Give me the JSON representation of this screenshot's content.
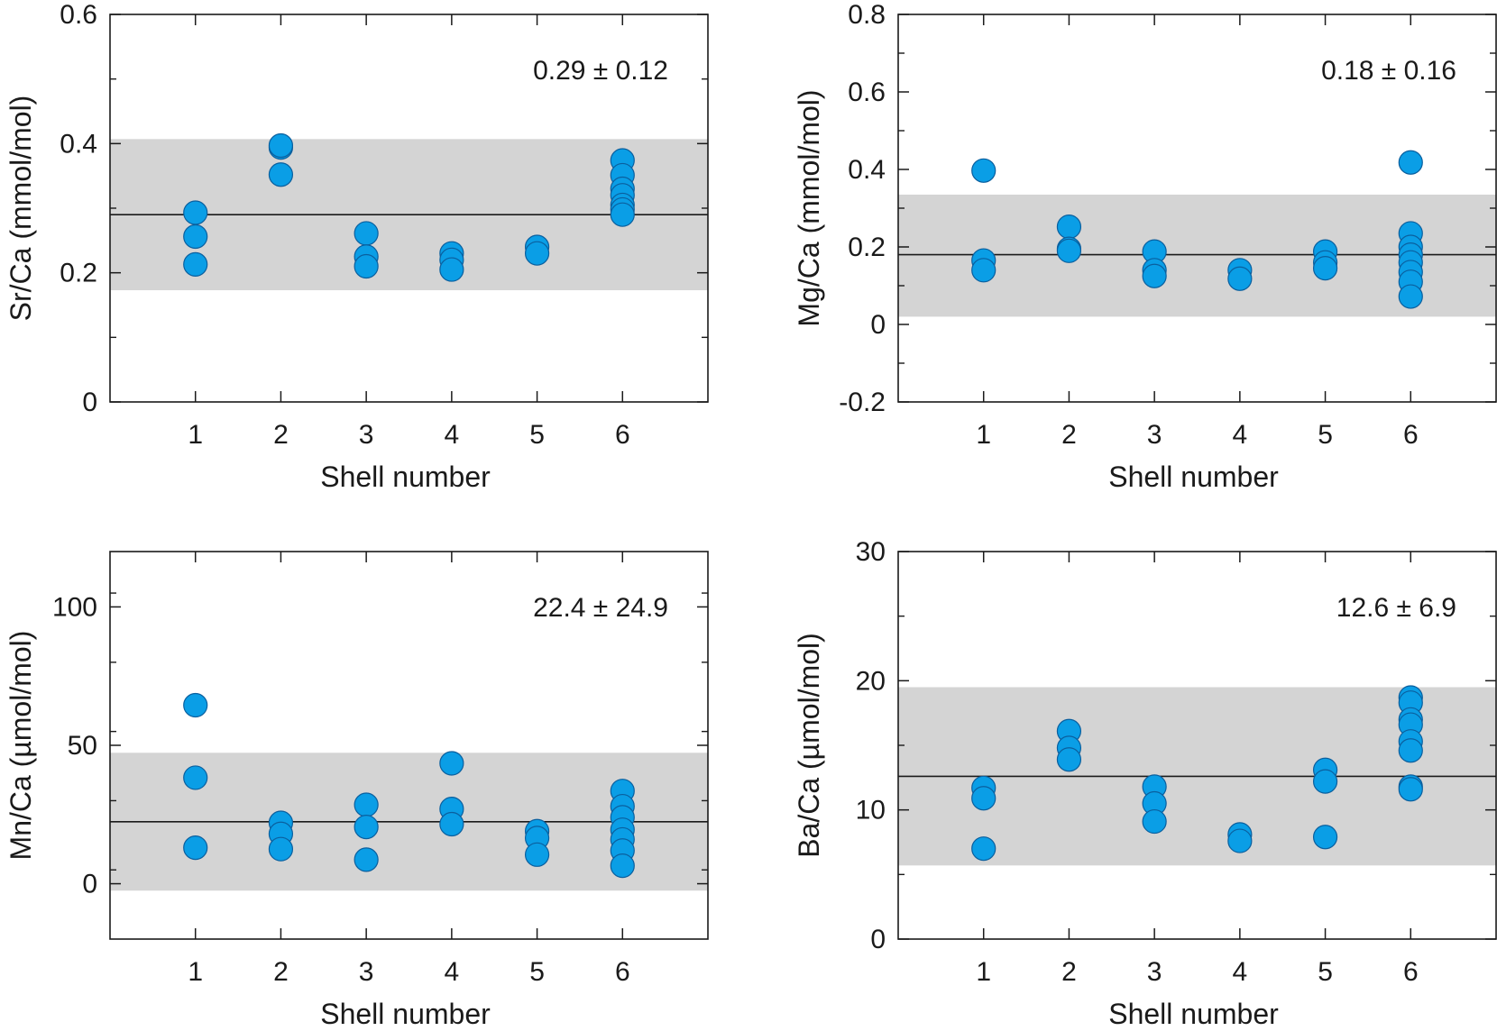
{
  "chart_data": [
    {
      "type": "scatter",
      "xlabel": "Shell number",
      "ylabel": "Sr/Ca (mmol/mol)",
      "xlim": [
        0,
        7
      ],
      "ylim": [
        0,
        0.6
      ],
      "x_ticks": [
        1,
        2,
        3,
        4,
        5,
        6
      ],
      "y_ticks": [
        0,
        0.2,
        0.4,
        0.6
      ],
      "y_tick_labels": [
        "0",
        "0.2",
        "0.4",
        "0.6"
      ],
      "annotation": "0.29 ± 0.12",
      "mean": 0.29,
      "band": [
        0.173,
        0.407
      ],
      "points": [
        [
          1,
          0.293
        ],
        [
          1,
          0.256
        ],
        [
          1,
          0.213
        ],
        [
          2,
          0.394
        ],
        [
          2,
          0.397
        ],
        [
          2,
          0.352
        ],
        [
          3,
          0.261
        ],
        [
          3,
          0.225
        ],
        [
          3,
          0.21
        ],
        [
          4,
          0.23
        ],
        [
          4,
          0.22
        ],
        [
          4,
          0.205
        ],
        [
          5,
          0.24
        ],
        [
          5,
          0.23
        ],
        [
          6,
          0.374
        ],
        [
          6,
          0.351
        ],
        [
          6,
          0.33
        ],
        [
          6,
          0.32
        ],
        [
          6,
          0.305
        ],
        [
          6,
          0.298
        ],
        [
          6,
          0.29
        ]
      ]
    },
    {
      "type": "scatter",
      "xlabel": "Shell number",
      "ylabel": "Mg/Ca (mmol/mol)",
      "xlim": [
        0,
        7
      ],
      "ylim": [
        -0.2,
        0.8
      ],
      "x_ticks": [
        1,
        2,
        3,
        4,
        5,
        6
      ],
      "y_ticks": [
        -0.2,
        0,
        0.2,
        0.4,
        0.6,
        0.8
      ],
      "y_tick_labels": [
        "-0.2",
        "0",
        "0.2",
        "0.4",
        "0.6",
        "0.8"
      ],
      "annotation": "0.18 ± 0.16",
      "mean": 0.18,
      "band": [
        0.02,
        0.335
      ],
      "points": [
        [
          1,
          0.397
        ],
        [
          1,
          0.165
        ],
        [
          1,
          0.14
        ],
        [
          2,
          0.252
        ],
        [
          2,
          0.195
        ],
        [
          2,
          0.19
        ],
        [
          3,
          0.188
        ],
        [
          3,
          0.14
        ],
        [
          3,
          0.125
        ],
        [
          4,
          0.14
        ],
        [
          4,
          0.118
        ],
        [
          5,
          0.188
        ],
        [
          5,
          0.16
        ],
        [
          5,
          0.145
        ],
        [
          6,
          0.418
        ],
        [
          6,
          0.235
        ],
        [
          6,
          0.2
        ],
        [
          6,
          0.18
        ],
        [
          6,
          0.16
        ],
        [
          6,
          0.135
        ],
        [
          6,
          0.11
        ],
        [
          6,
          0.072
        ]
      ]
    },
    {
      "type": "scatter",
      "xlabel": "Shell number",
      "ylabel": "Mn/Ca (µmol/mol)",
      "xlim": [
        0,
        7
      ],
      "ylim": [
        -20,
        120
      ],
      "x_ticks": [
        1,
        2,
        3,
        4,
        5,
        6
      ],
      "y_ticks": [
        0,
        50,
        100
      ],
      "y_tick_labels": [
        "0",
        "50",
        "100"
      ],
      "annotation": "22.4 ± 24.9",
      "mean": 22.4,
      "band": [
        -2.5,
        47.3
      ],
      "points": [
        [
          1,
          64.5
        ],
        [
          1,
          38.3
        ],
        [
          1,
          13
        ],
        [
          2,
          22
        ],
        [
          2,
          18
        ],
        [
          2,
          12.5
        ],
        [
          3,
          28.5
        ],
        [
          3,
          20.5
        ],
        [
          3,
          8.7
        ],
        [
          4,
          43.5
        ],
        [
          4,
          27
        ],
        [
          4,
          21.5
        ],
        [
          5,
          19
        ],
        [
          5,
          16.5
        ],
        [
          5,
          10.5
        ],
        [
          6,
          33.5
        ],
        [
          6,
          28
        ],
        [
          6,
          24
        ],
        [
          6,
          19.5
        ],
        [
          6,
          16
        ],
        [
          6,
          12
        ],
        [
          6,
          6.5
        ]
      ]
    },
    {
      "type": "scatter",
      "xlabel": "Shell number",
      "ylabel": "Ba/Ca (µmol/mol)",
      "xlim": [
        0,
        7
      ],
      "ylim": [
        0,
        30
      ],
      "x_ticks": [
        1,
        2,
        3,
        4,
        5,
        6
      ],
      "y_ticks": [
        0,
        10,
        20,
        30
      ],
      "y_tick_labels": [
        "0",
        "10",
        "20",
        "30"
      ],
      "annotation": "12.6 ± 6.9",
      "mean": 12.6,
      "band": [
        5.7,
        19.5
      ],
      "points": [
        [
          1,
          11.7
        ],
        [
          1,
          10.9
        ],
        [
          1,
          7
        ],
        [
          2,
          16.1
        ],
        [
          2,
          14.8
        ],
        [
          2,
          13.9
        ],
        [
          3,
          11.8
        ],
        [
          3,
          10.5
        ],
        [
          3,
          9.1
        ],
        [
          4,
          8.1
        ],
        [
          4,
          7.6
        ],
        [
          5,
          13.1
        ],
        [
          5,
          12.2
        ],
        [
          5,
          7.9
        ],
        [
          6,
          18.7
        ],
        [
          6,
          18.3
        ],
        [
          6,
          17
        ],
        [
          6,
          16.6
        ],
        [
          6,
          15.3
        ],
        [
          6,
          14.6
        ],
        [
          6,
          11.8
        ],
        [
          6,
          11.6
        ]
      ]
    }
  ],
  "colors": {
    "marker_fill": "#0a9ee6",
    "marker_stroke": "#0a5f9e",
    "band": "#d4d4d4",
    "line": "#1a1a1a"
  }
}
